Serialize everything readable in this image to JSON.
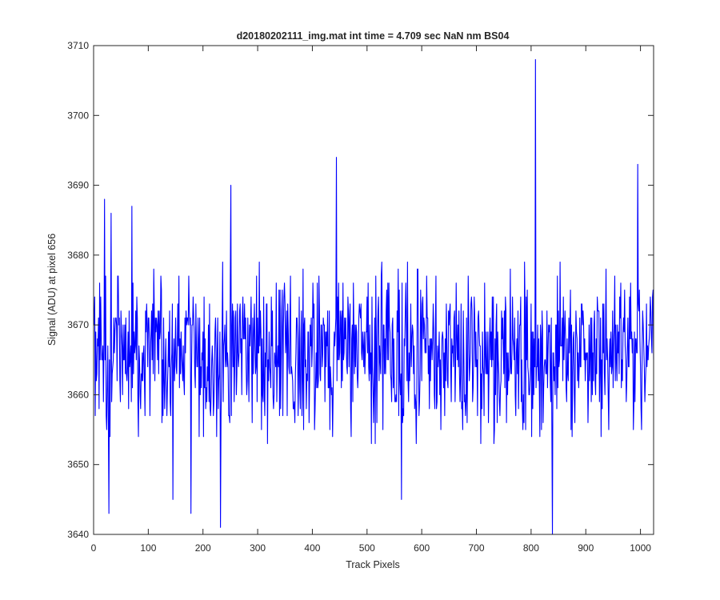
{
  "chart_data": {
    "type": "line",
    "title": "d20180202111_img.mat int time = 4.709 sec  NaN nm BS04",
    "xlabel": "Track Pixels",
    "ylabel": "Signal (ADU) at pixel 656",
    "xlim": [
      0,
      1024
    ],
    "ylim": [
      3640,
      3710
    ],
    "xticks": [
      0,
      100,
      200,
      300,
      400,
      500,
      600,
      700,
      800,
      900,
      1000
    ],
    "yticks": [
      3640,
      3650,
      3660,
      3670,
      3680,
      3690,
      3700,
      3710
    ],
    "grid": false,
    "legend": "none",
    "series": [
      {
        "color": "#0000ff",
        "x_start": 1,
        "x_step": 1,
        "noise_center": 3666,
        "noise_halfwidth": 12,
        "notable_points": [
          {
            "x": 20,
            "y": 3688
          },
          {
            "x": 28,
            "y": 3643
          },
          {
            "x": 32,
            "y": 3686
          },
          {
            "x": 70,
            "y": 3687
          },
          {
            "x": 145,
            "y": 3645
          },
          {
            "x": 178,
            "y": 3643
          },
          {
            "x": 232,
            "y": 3641
          },
          {
            "x": 251,
            "y": 3690
          },
          {
            "x": 444,
            "y": 3694
          },
          {
            "x": 563,
            "y": 3645
          },
          {
            "x": 808,
            "y": 3708
          },
          {
            "x": 839,
            "y": 3640
          },
          {
            "x": 995,
            "y": 3693
          }
        ]
      }
    ]
  }
}
